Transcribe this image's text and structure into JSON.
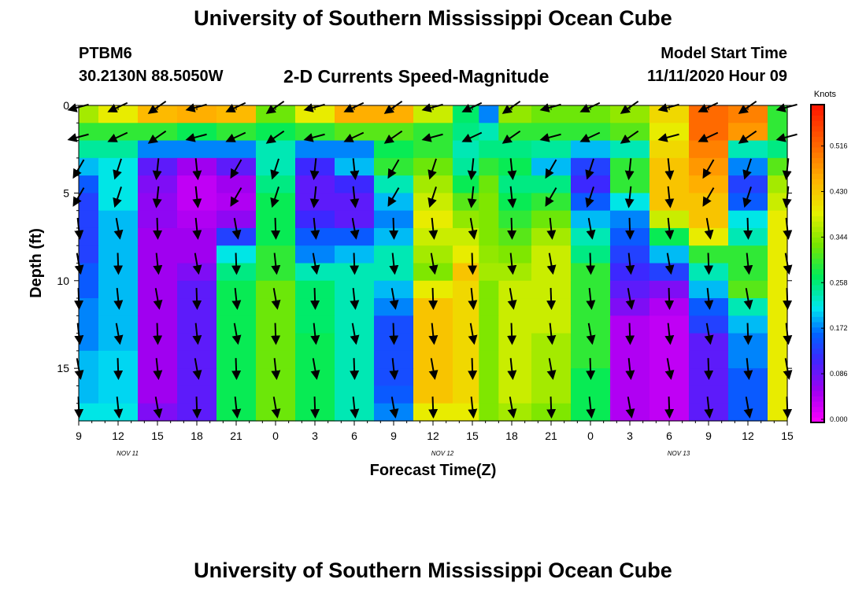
{
  "header": {
    "title": "University of Southern Mississippi Ocean Cube",
    "station": "PTBM6",
    "location": "30.2130N 88.5050W",
    "subtitle": "2-D Currents Speed-Magnitude",
    "model_start_label": "Model Start Time",
    "model_start_value": "11/11/2020 Hour 09"
  },
  "footer": {
    "title": "University of Southern Mississippi Ocean Cube"
  },
  "chart_data": {
    "type": "heatmap",
    "xlabel": "Forecast Time(Z)",
    "ylabel": "Depth (ft)",
    "x_ticks": [
      "9",
      "12",
      "15",
      "18",
      "21",
      "0",
      "3",
      "6",
      "9",
      "12",
      "15",
      "18",
      "21",
      "0",
      "3",
      "6",
      "9",
      "12",
      "15"
    ],
    "y_ticks": [
      "0",
      "5",
      "10",
      "15"
    ],
    "ylim": [
      0,
      18
    ],
    "date_labels": [
      "NOV 11",
      "NOV 12",
      "NOV 13"
    ],
    "colorbar": {
      "title": "Knots",
      "ticks": [
        "0.000",
        "0.086",
        "0.172",
        "0.258",
        "0.344",
        "0.430",
        "0.516"
      ],
      "range": [
        0,
        0.6
      ]
    },
    "x_hours_since_start": [
      0,
      3,
      6,
      9,
      12,
      15,
      18,
      21,
      24,
      27,
      30,
      31,
      33,
      36,
      39,
      42,
      45,
      48,
      51,
      54
    ],
    "speed_knots": [
      [
        0.36,
        0.4,
        0.45,
        0.46,
        0.45,
        0.33,
        0.4,
        0.46,
        0.46,
        0.38,
        0.27,
        0.18,
        0.35,
        0.33,
        0.33,
        0.35,
        0.42,
        0.52,
        0.5,
        0.3
      ],
      [
        0.3,
        0.3,
        0.3,
        0.28,
        0.3,
        0.28,
        0.3,
        0.32,
        0.32,
        0.3,
        0.26,
        0.24,
        0.3,
        0.3,
        0.3,
        0.32,
        0.4,
        0.52,
        0.48,
        0.3
      ],
      [
        0.25,
        0.25,
        0.18,
        0.18,
        0.18,
        0.24,
        0.18,
        0.18,
        0.28,
        0.3,
        0.24,
        0.26,
        0.26,
        0.25,
        0.2,
        0.24,
        0.42,
        0.5,
        0.24,
        0.26
      ],
      [
        0.2,
        0.22,
        0.1,
        0.06,
        0.1,
        0.24,
        0.12,
        0.2,
        0.3,
        0.33,
        0.25,
        0.3,
        0.28,
        0.2,
        0.14,
        0.3,
        0.44,
        0.48,
        0.18,
        0.32
      ],
      [
        0.16,
        0.22,
        0.08,
        0.04,
        0.06,
        0.26,
        0.1,
        0.12,
        0.24,
        0.36,
        0.28,
        0.33,
        0.26,
        0.26,
        0.12,
        0.3,
        0.44,
        0.46,
        0.14,
        0.36
      ],
      [
        0.14,
        0.22,
        0.07,
        0.04,
        0.05,
        0.28,
        0.1,
        0.1,
        0.2,
        0.38,
        0.32,
        0.34,
        0.28,
        0.3,
        0.16,
        0.22,
        0.44,
        0.44,
        0.16,
        0.38
      ],
      [
        0.14,
        0.2,
        0.07,
        0.05,
        0.07,
        0.28,
        0.12,
        0.1,
        0.18,
        0.4,
        0.35,
        0.34,
        0.3,
        0.33,
        0.2,
        0.18,
        0.38,
        0.44,
        0.22,
        0.4
      ],
      [
        0.14,
        0.2,
        0.06,
        0.06,
        0.14,
        0.28,
        0.16,
        0.16,
        0.2,
        0.38,
        0.38,
        0.34,
        0.32,
        0.36,
        0.24,
        0.16,
        0.28,
        0.4,
        0.24,
        0.4
      ],
      [
        0.14,
        0.2,
        0.06,
        0.06,
        0.22,
        0.3,
        0.18,
        0.2,
        0.24,
        0.36,
        0.4,
        0.35,
        0.34,
        0.38,
        0.26,
        0.14,
        0.2,
        0.3,
        0.3,
        0.4
      ],
      [
        0.16,
        0.2,
        0.06,
        0.08,
        0.26,
        0.3,
        0.24,
        0.24,
        0.24,
        0.34,
        0.44,
        0.36,
        0.36,
        0.38,
        0.3,
        0.12,
        0.14,
        0.24,
        0.3,
        0.4
      ],
      [
        0.16,
        0.2,
        0.06,
        0.1,
        0.28,
        0.33,
        0.27,
        0.24,
        0.2,
        0.4,
        0.42,
        0.34,
        0.38,
        0.38,
        0.3,
        0.1,
        0.08,
        0.2,
        0.32,
        0.4
      ],
      [
        0.18,
        0.2,
        0.06,
        0.1,
        0.28,
        0.33,
        0.27,
        0.24,
        0.18,
        0.44,
        0.42,
        0.34,
        0.38,
        0.38,
        0.3,
        0.08,
        0.05,
        0.16,
        0.24,
        0.4
      ],
      [
        0.18,
        0.2,
        0.06,
        0.1,
        0.28,
        0.33,
        0.27,
        0.24,
        0.15,
        0.44,
        0.42,
        0.34,
        0.38,
        0.38,
        0.3,
        0.05,
        0.04,
        0.14,
        0.2,
        0.4
      ],
      [
        0.18,
        0.2,
        0.06,
        0.1,
        0.28,
        0.33,
        0.28,
        0.24,
        0.15,
        0.44,
        0.42,
        0.34,
        0.38,
        0.36,
        0.3,
        0.05,
        0.04,
        0.1,
        0.18,
        0.4
      ],
      [
        0.2,
        0.21,
        0.06,
        0.1,
        0.28,
        0.33,
        0.28,
        0.24,
        0.15,
        0.44,
        0.42,
        0.34,
        0.38,
        0.36,
        0.3,
        0.05,
        0.04,
        0.1,
        0.18,
        0.4
      ],
      [
        0.2,
        0.21,
        0.06,
        0.1,
        0.28,
        0.33,
        0.28,
        0.24,
        0.15,
        0.44,
        0.42,
        0.34,
        0.38,
        0.36,
        0.28,
        0.05,
        0.04,
        0.1,
        0.16,
        0.4
      ],
      [
        0.2,
        0.21,
        0.06,
        0.1,
        0.28,
        0.33,
        0.28,
        0.24,
        0.16,
        0.44,
        0.42,
        0.34,
        0.38,
        0.36,
        0.28,
        0.05,
        0.04,
        0.1,
        0.16,
        0.4
      ],
      [
        0.22,
        0.22,
        0.08,
        0.1,
        0.28,
        0.33,
        0.28,
        0.24,
        0.18,
        0.4,
        0.4,
        0.34,
        0.36,
        0.34,
        0.28,
        0.05,
        0.04,
        0.1,
        0.16,
        0.4
      ]
    ]
  }
}
